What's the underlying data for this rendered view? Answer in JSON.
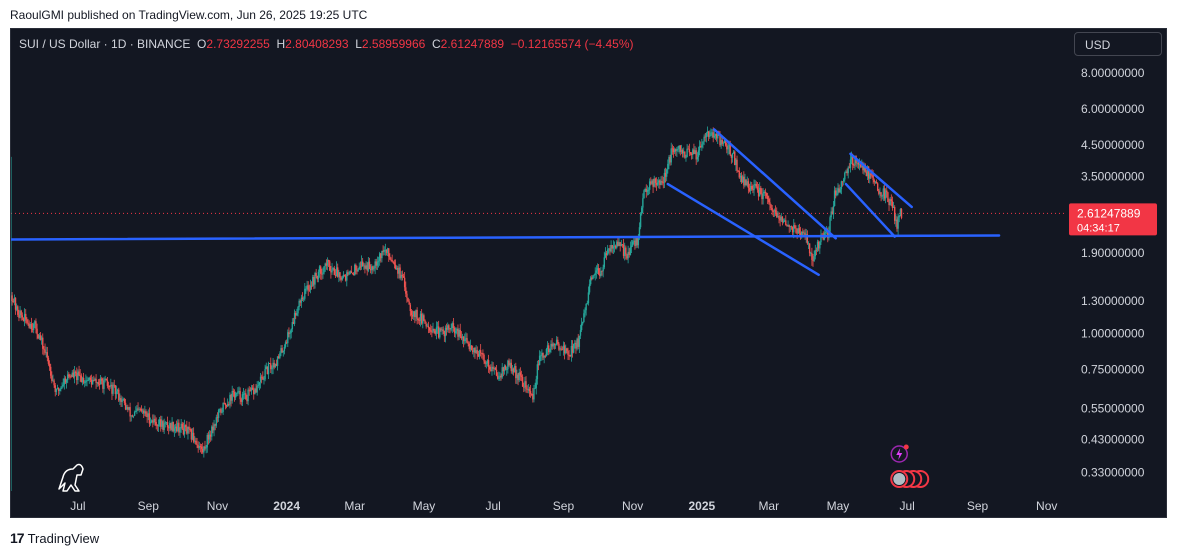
{
  "header": {
    "published": "RaoulGMI published on TradingView.com, Jun 26, 2025 19:25 UTC"
  },
  "legend": {
    "symbol": "SUI / US Dollar · 1D · BINANCE",
    "o_label": "O",
    "o_value": "2.73292255",
    "h_label": "H",
    "h_value": "2.80408293",
    "l_label": "L",
    "l_value": "2.58959966",
    "c_label": "C",
    "c_value": "2.61247889",
    "change": "−0.12165574 (−4.45%)"
  },
  "currency_button": "USD",
  "price_tag": {
    "price": "2.61247889",
    "countdown": "04:34:17"
  },
  "footer": {
    "brand": "TradingView"
  },
  "colors": {
    "background": "#131722",
    "up": "#26a69a",
    "down": "#ef5350",
    "trendline": "#2962ff",
    "price_tag": "#f23645",
    "axis_text": "#d1d4dc"
  },
  "chart_data": {
    "type": "line",
    "title": "SUI / US Dollar · 1D · BINANCE",
    "y_scale": "log",
    "y_ticks": [
      "8.00000000",
      "6.00000000",
      "4.50000000",
      "3.50000000",
      "1.90000000",
      "1.30000000",
      "1.00000000",
      "0.75000000",
      "0.55000000",
      "0.43000000",
      "0.33000000"
    ],
    "y_tick_values": [
      8.0,
      6.0,
      4.5,
      3.5,
      1.9,
      1.3,
      1.0,
      0.75,
      0.55,
      0.43,
      0.33
    ],
    "ylim": [
      0.285,
      10.5
    ],
    "x_ticks": [
      "Jul",
      "Sep",
      "Nov",
      "2024",
      "Mar",
      "May",
      "Jul",
      "Sep",
      "Nov",
      "2025",
      "Mar",
      "May",
      "Jul",
      "Sep",
      "Nov"
    ],
    "x_tick_dates": [
      "2023-07-01",
      "2023-09-01",
      "2023-11-01",
      "2024-01-01",
      "2024-03-01",
      "2024-05-01",
      "2024-07-01",
      "2024-09-01",
      "2024-11-01",
      "2025-01-01",
      "2025-03-01",
      "2025-05-01",
      "2025-07-01",
      "2025-09-01",
      "2025-11-01"
    ],
    "xlim": [
      "2023-05-03",
      "2025-11-18"
    ],
    "series": [
      {
        "type": "candlestick-approx",
        "points": [
          [
            "2023-05-03",
            1.4
          ],
          [
            "2023-05-08",
            1.2
          ],
          [
            "2023-05-15",
            1.12
          ],
          [
            "2023-05-25",
            1.05
          ],
          [
            "2023-06-05",
            0.8
          ],
          [
            "2023-06-12",
            0.62
          ],
          [
            "2023-06-20",
            0.7
          ],
          [
            "2023-06-25",
            0.72
          ],
          [
            "2023-07-05",
            0.7
          ],
          [
            "2023-07-15",
            0.68
          ],
          [
            "2023-07-25",
            0.67
          ],
          [
            "2023-08-05",
            0.62
          ],
          [
            "2023-08-17",
            0.52
          ],
          [
            "2023-08-25",
            0.54
          ],
          [
            "2023-09-05",
            0.5
          ],
          [
            "2023-09-15",
            0.48
          ],
          [
            "2023-09-25",
            0.48
          ],
          [
            "2023-10-05",
            0.46
          ],
          [
            "2023-10-12",
            0.43
          ],
          [
            "2023-10-19",
            0.39
          ],
          [
            "2023-10-25",
            0.45
          ],
          [
            "2023-11-05",
            0.55
          ],
          [
            "2023-11-15",
            0.62
          ],
          [
            "2023-11-25",
            0.6
          ],
          [
            "2023-12-05",
            0.64
          ],
          [
            "2023-12-15",
            0.75
          ],
          [
            "2023-12-25",
            0.82
          ],
          [
            "2024-01-05",
            1.05
          ],
          [
            "2024-01-12",
            1.3
          ],
          [
            "2024-01-20",
            1.45
          ],
          [
            "2024-01-28",
            1.6
          ],
          [
            "2024-02-05",
            1.75
          ],
          [
            "2024-02-15",
            1.62
          ],
          [
            "2024-02-25",
            1.58
          ],
          [
            "2024-03-05",
            1.75
          ],
          [
            "2024-03-15",
            1.7
          ],
          [
            "2024-03-27",
            1.95
          ],
          [
            "2024-04-05",
            1.78
          ],
          [
            "2024-04-13",
            1.5
          ],
          [
            "2024-04-20",
            1.2
          ],
          [
            "2024-05-01",
            1.1
          ],
          [
            "2024-05-15",
            1.0
          ],
          [
            "2024-05-25",
            1.05
          ],
          [
            "2024-06-05",
            0.95
          ],
          [
            "2024-06-15",
            0.88
          ],
          [
            "2024-06-25",
            0.8
          ],
          [
            "2024-07-05",
            0.72
          ],
          [
            "2024-07-15",
            0.78
          ],
          [
            "2024-07-25",
            0.7
          ],
          [
            "2024-08-05",
            0.6
          ],
          [
            "2024-08-10",
            0.8
          ],
          [
            "2024-08-20",
            0.9
          ],
          [
            "2024-08-28",
            0.92
          ],
          [
            "2024-09-05",
            0.85
          ],
          [
            "2024-09-15",
            0.95
          ],
          [
            "2024-09-25",
            1.5
          ],
          [
            "2024-10-05",
            1.7
          ],
          [
            "2024-10-13",
            2.05
          ],
          [
            "2024-10-20",
            2.0
          ],
          [
            "2024-10-27",
            1.9
          ],
          [
            "2024-11-05",
            2.1
          ],
          [
            "2024-11-12",
            3.2
          ],
          [
            "2024-11-20",
            3.4
          ],
          [
            "2024-11-28",
            3.4
          ],
          [
            "2024-12-05",
            4.2
          ],
          [
            "2024-12-12",
            4.3
          ],
          [
            "2024-12-20",
            4.2
          ],
          [
            "2024-12-28",
            4.2
          ],
          [
            "2025-01-05",
            5.1
          ],
          [
            "2025-01-12",
            4.8
          ],
          [
            "2025-01-20",
            4.6
          ],
          [
            "2025-01-28",
            4.2
          ],
          [
            "2025-02-05",
            3.4
          ],
          [
            "2025-02-15",
            3.2
          ],
          [
            "2025-02-25",
            3.0
          ],
          [
            "2025-03-05",
            2.6
          ],
          [
            "2025-03-15",
            2.4
          ],
          [
            "2025-03-25",
            2.3
          ],
          [
            "2025-04-05",
            2.1
          ],
          [
            "2025-04-08",
            1.75
          ],
          [
            "2025-04-15",
            2.1
          ],
          [
            "2025-04-22",
            2.2
          ],
          [
            "2025-04-28",
            3.0
          ],
          [
            "2025-05-05",
            3.4
          ],
          [
            "2025-05-12",
            4.0
          ],
          [
            "2025-05-20",
            3.9
          ],
          [
            "2025-05-28",
            3.6
          ],
          [
            "2025-06-05",
            3.2
          ],
          [
            "2025-06-12",
            3.0
          ],
          [
            "2025-06-18",
            2.8
          ],
          [
            "2025-06-22",
            2.35
          ],
          [
            "2025-06-25",
            2.75
          ],
          [
            "2025-06-26",
            2.61
          ]
        ]
      }
    ],
    "trendlines": [
      {
        "from": [
          "2023-05-03",
          2.12
        ],
        "to": [
          "2025-09-20",
          2.19
        ]
      },
      {
        "from": [
          "2024-12-02",
          3.3
        ],
        "to": [
          "2025-04-14",
          1.6
        ]
      },
      {
        "from": [
          "2025-01-12",
          5.1
        ],
        "to": [
          "2025-04-29",
          2.14
        ]
      },
      {
        "from": [
          "2025-05-08",
          3.3
        ],
        "to": [
          "2025-06-20",
          2.17
        ]
      },
      {
        "from": [
          "2025-05-12",
          4.2
        ],
        "to": [
          "2025-07-05",
          2.75
        ]
      }
    ],
    "current_price": 2.61247889
  }
}
